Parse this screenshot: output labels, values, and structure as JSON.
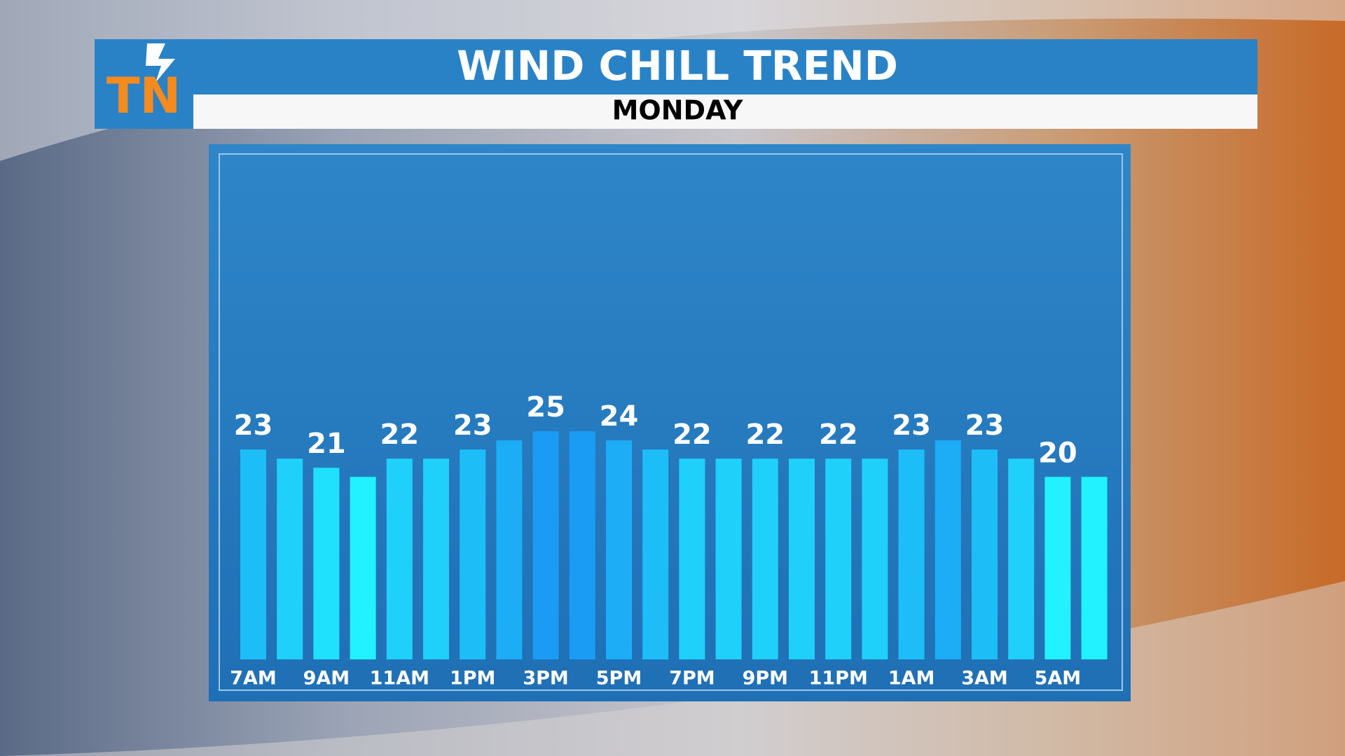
{
  "logo": "TN",
  "chart_data": {
    "type": "bar",
    "title": "WIND CHILL TREND",
    "subtitle": "MONDAY",
    "categories": [
      "7AM",
      null,
      "9AM",
      null,
      "11AM",
      null,
      "1PM",
      null,
      "3PM",
      null,
      "5PM",
      null,
      "7PM",
      null,
      "9PM",
      null,
      "11PM",
      null,
      "1AM",
      null,
      "3AM",
      null,
      "5AM",
      null
    ],
    "values": [
      23,
      22,
      21,
      20,
      22,
      22,
      23,
      24,
      25,
      25,
      24,
      23,
      22,
      22,
      22,
      22,
      22,
      22,
      23,
      24,
      23,
      22,
      20,
      20
    ],
    "value_labels": [
      "23",
      null,
      "21",
      null,
      "22",
      null,
      "23",
      null,
      "25",
      null,
      "24",
      null,
      "22",
      null,
      "22",
      null,
      "22",
      null,
      "23",
      null,
      "23",
      null,
      "20",
      null
    ],
    "color_low": "#22f2ff",
    "color_high": "#1a9cf4",
    "ylim": [
      0,
      55
    ]
  }
}
